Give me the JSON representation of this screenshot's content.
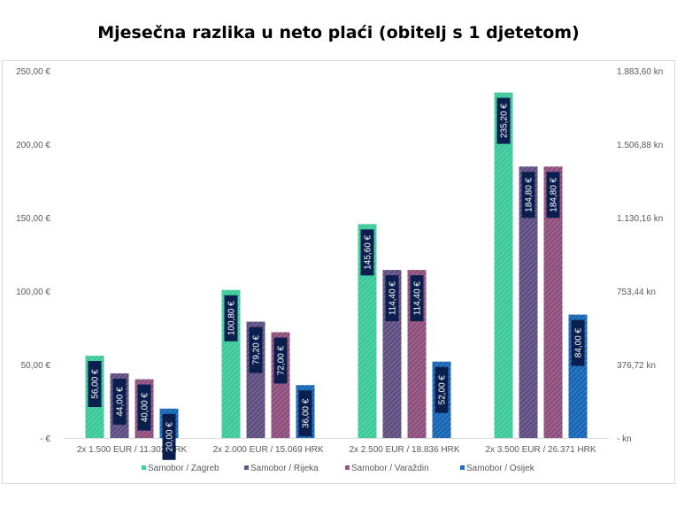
{
  "chart_data": {
    "type": "bar",
    "title": "Mjesečna razlika u neto plaći (obitelj s 1 djetetom)",
    "categories": [
      "2x 1.500 EUR / 11.302 HRK",
      "2x 2.000 EUR / 15.069 HRK",
      "2x 2.500 EUR / 18.836 HRK",
      "2x 3.500 EUR / 26.371 HRK"
    ],
    "series": [
      {
        "name": "Samobor / Zagreb",
        "color": "#3CC99A",
        "values": [
          56.0,
          100.8,
          145.6,
          235.2
        ],
        "labels": [
          "56,00 €",
          "100,80 €",
          "145,60 €",
          "235,20 €"
        ]
      },
      {
        "name": "Samobor / Rijeka",
        "color": "#5E4D80",
        "values": [
          44.0,
          79.2,
          114.4,
          184.8
        ],
        "labels": [
          "44,00 €",
          "79,20 €",
          "114,40 €",
          "184,80 €"
        ]
      },
      {
        "name": "Samobor / Varaždin",
        "color": "#8E4E7C",
        "values": [
          40.0,
          72.0,
          114.4,
          184.8
        ],
        "labels": [
          "40,00 €",
          "72,00 €",
          "114,40 €",
          "184,80 €"
        ]
      },
      {
        "name": "Samobor / Osijek",
        "color": "#1565B5",
        "values": [
          20.0,
          36.0,
          52.0,
          84.0
        ],
        "labels": [
          "20,00 €",
          "36,00 €",
          "52,00 €",
          "84,00 €"
        ]
      }
    ],
    "ylim": [
      0,
      250
    ],
    "y_ticks": [
      "-   €",
      "50,00 €",
      "100,00 €",
      "150,00 €",
      "200,00 €",
      "250,00 €"
    ],
    "y2_ticks": [
      "-   kn",
      "376,72 kn",
      "753,44 kn",
      "1.130,16 kn",
      "1.506,88 kn",
      "1.883,60 kn"
    ],
    "label_box_color": "#0B1F4E",
    "legend_position": "bottom",
    "grid": false
  }
}
